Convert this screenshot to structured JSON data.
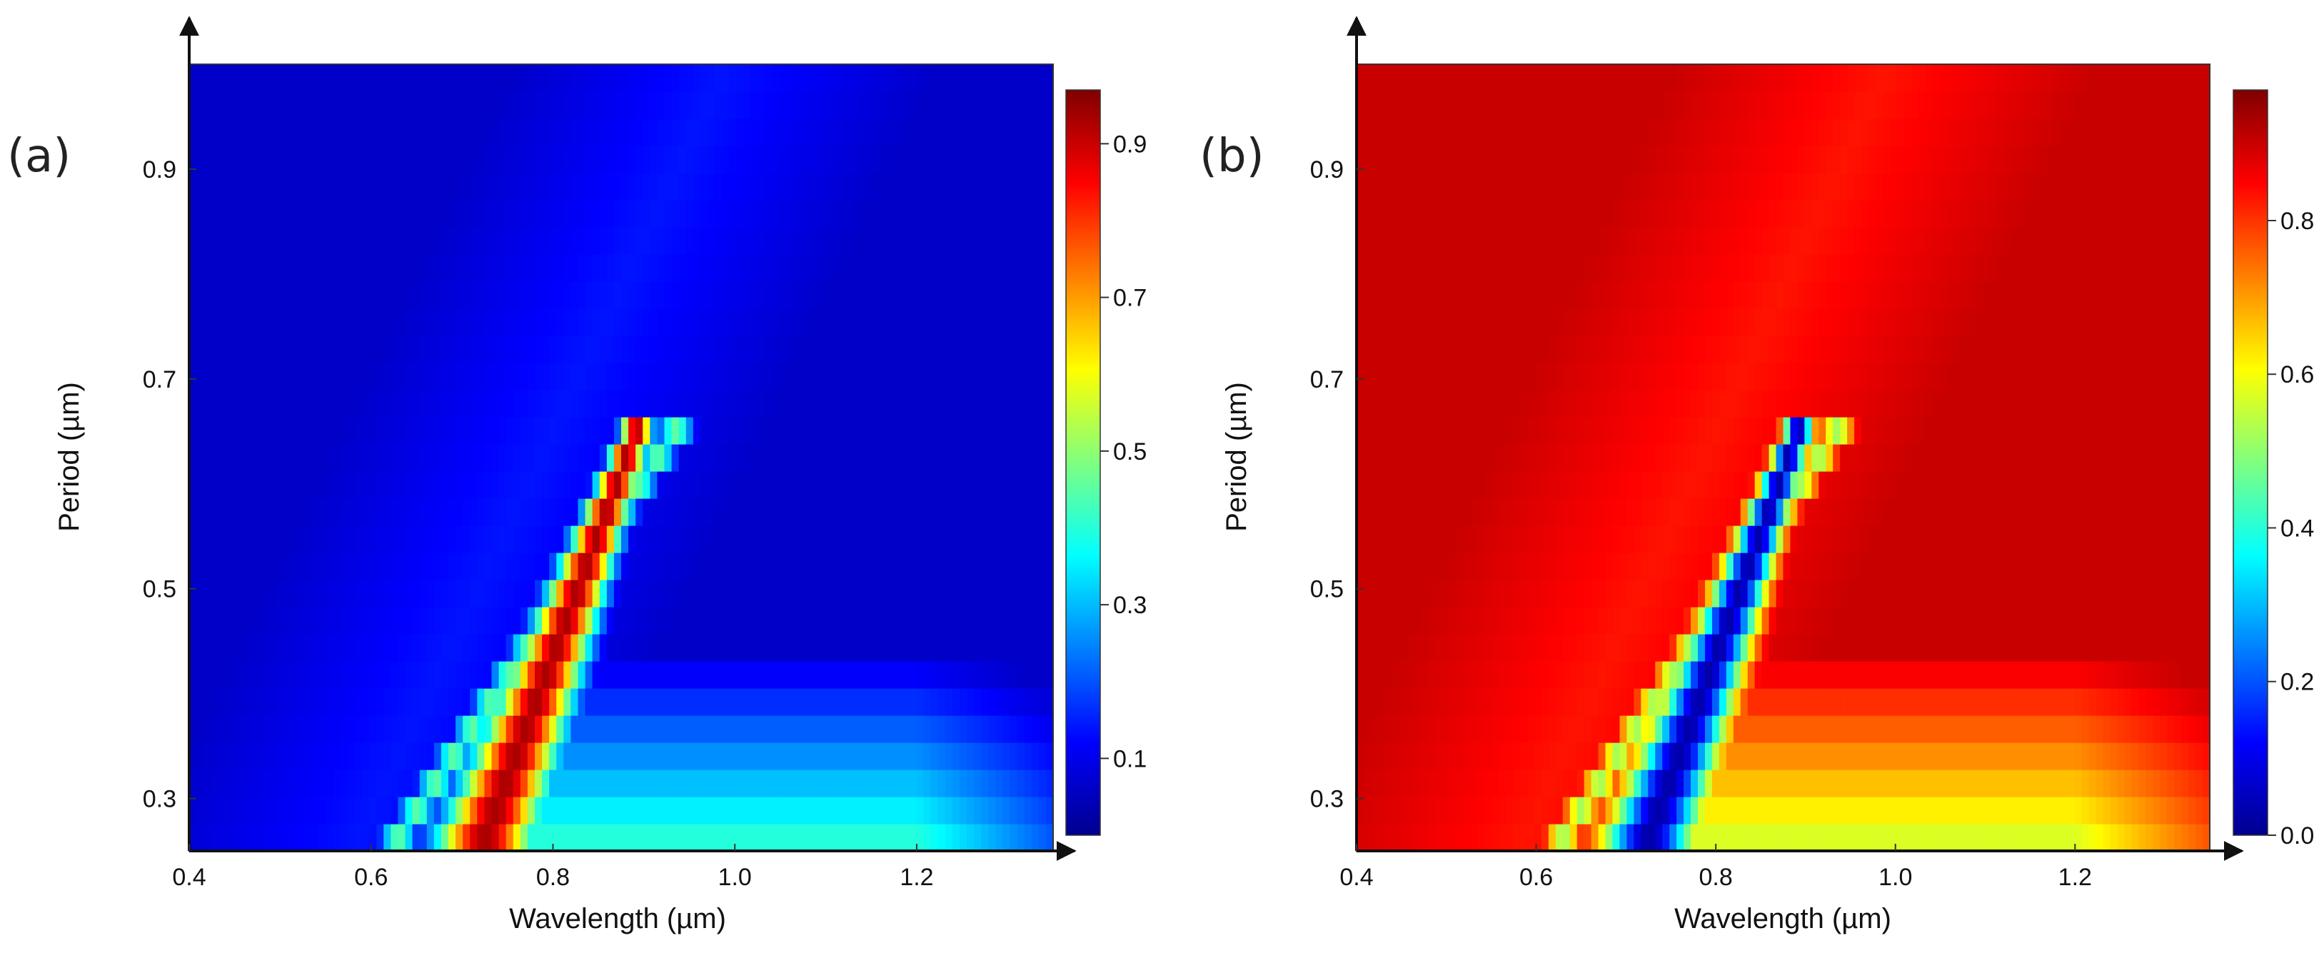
{
  "chart_data": [
    {
      "type": "heatmap",
      "panel_label": "(a)",
      "title": "",
      "xlabel": "Wavelength (µm)",
      "ylabel": "Period (µm)",
      "xlim": [
        0.4,
        1.35
      ],
      "ylim": [
        0.25,
        1.0
      ],
      "x_ticks": [
        "0.4",
        "0.6",
        "0.8",
        "1.0",
        "1.2"
      ],
      "y_ticks": [
        "0.3",
        "0.5",
        "0.7",
        "0.9"
      ],
      "colorbar": {
        "range": [
          0.0,
          0.97
        ],
        "ticks": [
          "0.1",
          "0.3",
          "0.5",
          "0.7",
          "0.9"
        ],
        "colormap": "jet"
      },
      "background_value": 0.08,
      "resonance_bands": [
        {
          "name": "",
          "x_at_min_period": 0.72,
          "x_at_max_period": 0.9,
          "period_range": [
            0.25,
            0.67
          ],
          "peak_value": 0.95
        },
        {
          "name": "",
          "x_at_min_period": 0.62,
          "x_at_max_period": 0.95,
          "period_range": [
            0.25,
            0.67
          ],
          "peak_value": 0.45
        }
      ]
    },
    {
      "type": "heatmap",
      "panel_label": "(b)",
      "title": "",
      "xlabel": "Wavelength (µm)",
      "ylabel": "Period (µm)",
      "xlim": [
        0.4,
        1.35
      ],
      "ylim": [
        0.25,
        1.0
      ],
      "x_ticks": [
        "0.4",
        "0.6",
        "0.8",
        "1.0",
        "1.2"
      ],
      "y_ticks": [
        "0.3",
        "0.5",
        "0.7",
        "0.9"
      ],
      "colorbar": {
        "range": [
          0.0,
          0.97
        ],
        "ticks": [
          "0.0",
          "0.2",
          "0.4",
          "0.6",
          "0.8"
        ],
        "colormap": "jet"
      },
      "background_value": 0.9,
      "resonance_bands": [
        {
          "name": "",
          "x_at_min_period": 0.72,
          "x_at_max_period": 0.9,
          "period_range": [
            0.25,
            0.67
          ],
          "min_value": 0.02
        },
        {
          "name": "",
          "x_at_min_period": 0.62,
          "x_at_max_period": 0.95,
          "period_range": [
            0.25,
            0.67
          ],
          "min_value": 0.5
        }
      ]
    }
  ]
}
